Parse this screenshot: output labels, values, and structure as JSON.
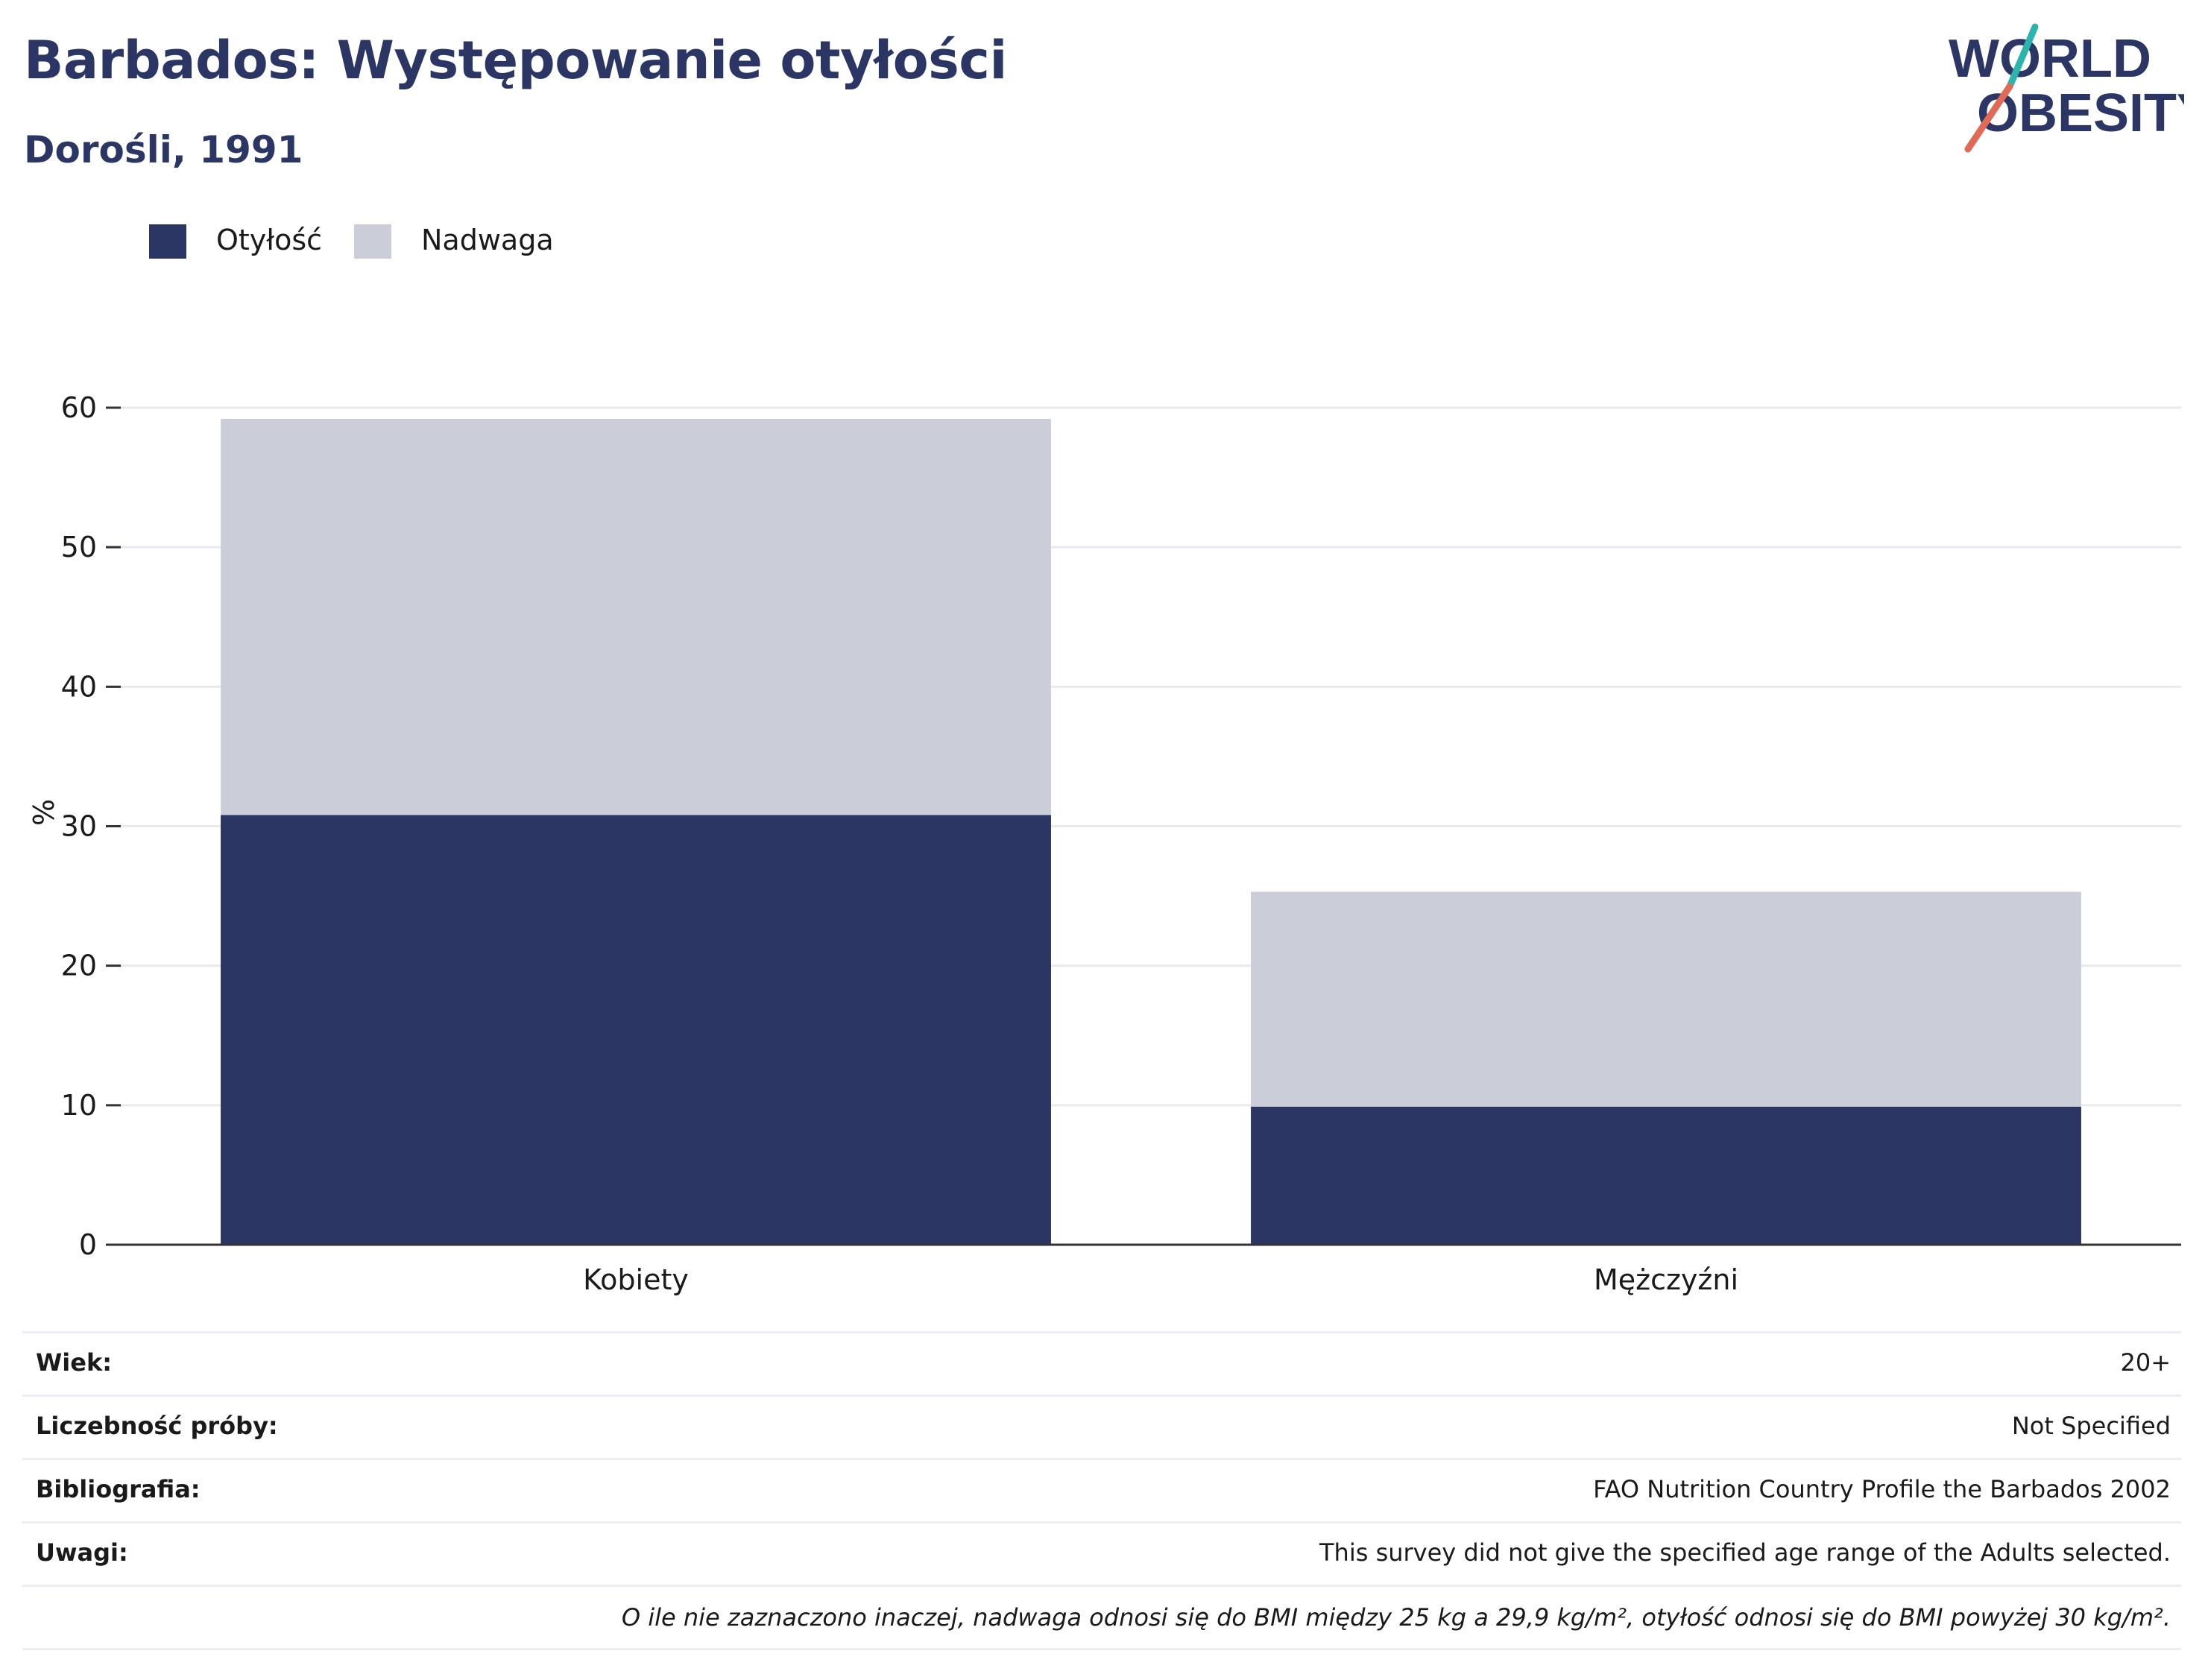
{
  "title": "Barbados: Występowanie otyłości",
  "subtitle": "Dorośli, 1991",
  "logo": {
    "line1": "WORLD",
    "line2": "OBESITY"
  },
  "colors": {
    "obesity": "#2b3664",
    "overweight": "#cbcdd8",
    "title": "#2b3664",
    "logo_teal": "#2bb5ad",
    "logo_red": "#e06a55"
  },
  "legend": [
    {
      "label": "Otyłość",
      "color": "#2b3664"
    },
    {
      "label": "Nadwaga",
      "color": "#cbcdd8"
    }
  ],
  "chart_data": {
    "type": "bar",
    "stacked": true,
    "categories": [
      "Kobiety",
      "Mężczyźni"
    ],
    "series": [
      {
        "name": "Otyłość",
        "values": [
          30.8,
          9.9
        ],
        "color": "#2b3664"
      },
      {
        "name": "Nadwaga",
        "values": [
          28.4,
          15.4
        ],
        "color": "#cbcdd8"
      }
    ],
    "ylabel": "%",
    "ylim": [
      0,
      60
    ],
    "yticks": [
      0,
      10,
      20,
      30,
      40,
      50,
      60
    ],
    "grid": true,
    "legend_position": "top-left"
  },
  "info": [
    {
      "label": "Wiek:",
      "value": "20+"
    },
    {
      "label": "Liczebność próby:",
      "value": "Not Specified"
    },
    {
      "label": "Bibliografia:",
      "value": "FAO Nutrition Country Profile the Barbados 2002"
    },
    {
      "label": "Uwagi:",
      "value": "This survey did not give the specified age range of the Adults selected."
    }
  ],
  "note": "O ile nie zaznaczono inaczej, nadwaga odnosi się do BMI między 25 kg a 29,9 kg/m², otyłość odnosi się do BMI powyżej 30 kg/m²."
}
